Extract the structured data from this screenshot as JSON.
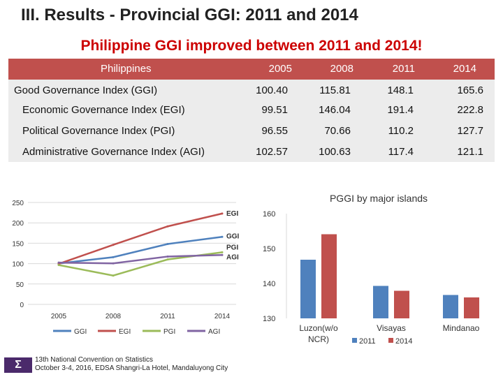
{
  "header": {
    "title": "III. Results - Provincial GGI: 2011 and 2014",
    "subtitle": "Philippine GGI improved between 2011 and 2014!"
  },
  "table": {
    "corner": "Philippines",
    "years": [
      "2005",
      "2008",
      "2011",
      "2014"
    ],
    "rows": [
      {
        "label": "Good Governance Index (GGI)",
        "values": [
          "100.40",
          "115.81",
          "148.1",
          "165.6"
        ]
      },
      {
        "label": "Economic Governance Index (EGI)",
        "values": [
          "99.51",
          "146.04",
          "191.4",
          "222.8"
        ]
      },
      {
        "label": "Political Governance Index (PGI)",
        "values": [
          "96.55",
          "70.66",
          "110.2",
          "127.7"
        ]
      },
      {
        "label": "Administrative Governance Index (AGI)",
        "values": [
          "102.57",
          "100.63",
          "117.4",
          "121.1"
        ]
      }
    ]
  },
  "chart_data": [
    {
      "type": "line",
      "title": "",
      "x": [
        "2005",
        "2008",
        "2011",
        "2014"
      ],
      "ylim": [
        0,
        250
      ],
      "yticks": [
        "0",
        "50",
        "100",
        "150",
        "200",
        "250"
      ],
      "series": [
        {
          "name": "GGI",
          "color": "#4f81bd",
          "values": [
            100.4,
            115.81,
            148.1,
            165.6
          ]
        },
        {
          "name": "EGI",
          "color": "#c0504d",
          "values": [
            99.51,
            146.04,
            191.4,
            222.8
          ]
        },
        {
          "name": "PGI",
          "color": "#9bbb59",
          "values": [
            96.55,
            70.66,
            110.2,
            127.7
          ]
        },
        {
          "name": "AGI",
          "color": "#8064a2",
          "values": [
            102.57,
            100.63,
            117.4,
            121.1
          ]
        }
      ],
      "legend": "bottom",
      "grid": true
    },
    {
      "type": "bar",
      "title": "PGGI by major islands",
      "categories": [
        "Luzon(w/o NCR)",
        "Visayas",
        "Mindanao"
      ],
      "category_lines": [
        [
          "Luzon(w/o",
          "NCR)"
        ],
        [
          "Visayas"
        ],
        [
          "Mindanao"
        ]
      ],
      "ylim": [
        130,
        160
      ],
      "yticks": [
        "130",
        "140",
        "150",
        "160"
      ],
      "series": [
        {
          "name": "2011",
          "color": "#4f81bd",
          "values": [
            146.8,
            139.3,
            136.7
          ]
        },
        {
          "name": "2014",
          "color": "#c0504d",
          "values": [
            154.1,
            137.9,
            136.0
          ]
        }
      ],
      "legend": "bottom",
      "grid": false
    }
  ],
  "footer": {
    "logo_text": "Σ",
    "line1": "13th National Convention on Statistics",
    "line2": "October 3-4, 2016, EDSA Shangri-La Hotel, Mandaluyong City"
  }
}
